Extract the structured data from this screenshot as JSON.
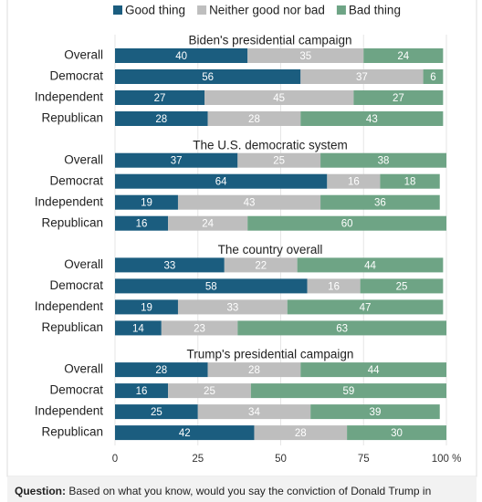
{
  "chart_data": [
    {
      "type": "bar",
      "orientation": "horizontal",
      "stacked": true,
      "title": "Biden's presidential campaign",
      "categories": [
        "Overall",
        "Democrat",
        "Independent",
        "Republican"
      ],
      "series": [
        {
          "name": "Good thing",
          "color": "#1b5d7f",
          "values": [
            40,
            56,
            27,
            28
          ]
        },
        {
          "name": "Neither good nor bad",
          "color": "#bebebe",
          "values": [
            35,
            37,
            45,
            28
          ]
        },
        {
          "name": "Bad thing",
          "color": "#6ea485",
          "values": [
            24,
            6,
            27,
            43
          ]
        }
      ]
    },
    {
      "type": "bar",
      "orientation": "horizontal",
      "stacked": true,
      "title": "The U.S. democratic system",
      "categories": [
        "Overall",
        "Democrat",
        "Independent",
        "Republican"
      ],
      "series": [
        {
          "color": "#1b5d7f",
          "values": [
            37,
            64,
            19,
            16
          ]
        },
        {
          "color": "#bebebe",
          "values": [
            25,
            16,
            43,
            24
          ]
        },
        {
          "color": "#6ea485",
          "values": [
            38,
            18,
            36,
            60
          ]
        }
      ]
    },
    {
      "type": "bar",
      "orientation": "horizontal",
      "stacked": true,
      "title": "The country overall",
      "categories": [
        "Overall",
        "Democrat",
        "Independent",
        "Republican"
      ],
      "series": [
        {
          "color": "#1b5d7f",
          "values": [
            33,
            58,
            19,
            14
          ]
        },
        {
          "color": "#bebebe",
          "values": [
            22,
            16,
            33,
            23
          ]
        },
        {
          "color": "#6ea485",
          "values": [
            44,
            25,
            47,
            63
          ]
        }
      ]
    },
    {
      "type": "bar",
      "orientation": "horizontal",
      "stacked": true,
      "title": "Trump's presidential campaign",
      "categories": [
        "Overall",
        "Democrat",
        "Independent",
        "Republican"
      ],
      "series": [
        {
          "color": "#1b5d7f",
          "values": [
            28,
            16,
            25,
            42
          ]
        },
        {
          "color": "#bebebe",
          "values": [
            28,
            25,
            34,
            28
          ]
        },
        {
          "color": "#6ea485",
          "values": [
            44,
            59,
            39,
            30
          ]
        }
      ],
      "xlim": [
        0,
        100
      ],
      "xticks": [
        0,
        25,
        50,
        75,
        {
          "value": 100,
          "label": "100 %"
        }
      ],
      "grid": true
    }
  ],
  "footer": {
    "label": "Question:",
    "text": "Based on what you know, would you say the conviction of Donald Trump in"
  }
}
